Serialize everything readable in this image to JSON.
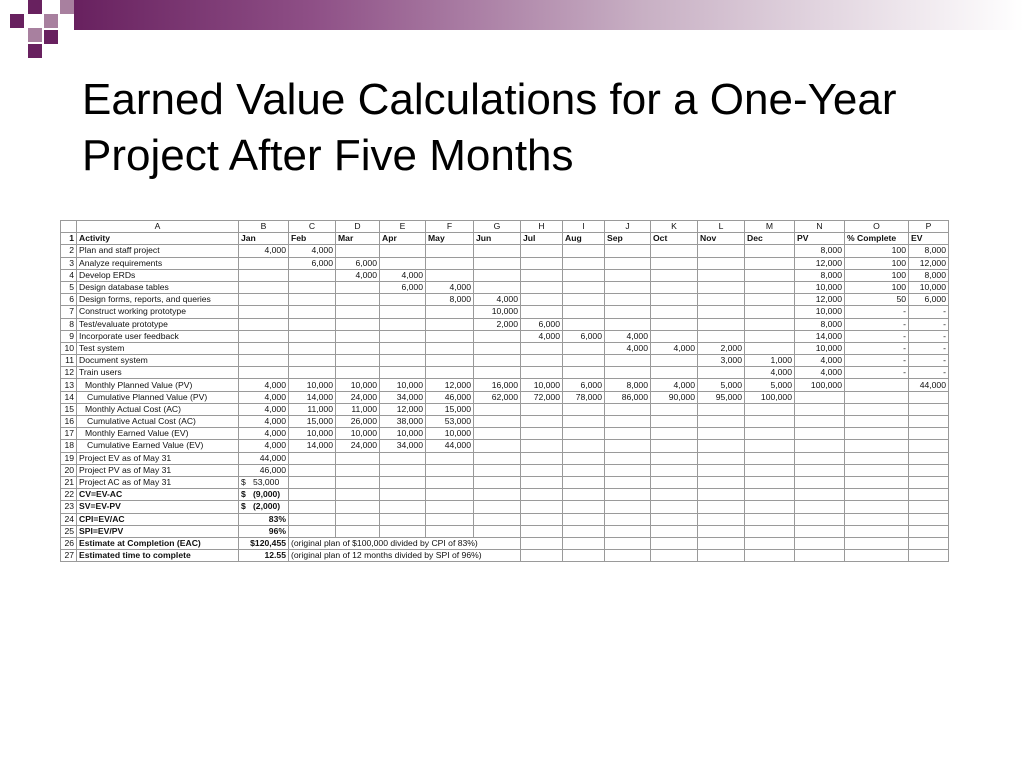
{
  "title": "Earned Value Calculations for a One-Year Project After Five Months",
  "colors": {
    "accent": "#68215f",
    "accent_light": "#a8809f"
  },
  "sheet": {
    "col_letters": [
      "",
      "A",
      "B",
      "C",
      "D",
      "E",
      "F",
      "G",
      "H",
      "I",
      "J",
      "K",
      "L",
      "M",
      "N",
      "O",
      "P"
    ],
    "rows": [
      [
        "1",
        "Activity",
        "Jan",
        "Feb",
        "Mar",
        "Apr",
        "May",
        "Jun",
        "Jul",
        "Aug",
        "Sep",
        "Oct",
        "Nov",
        "Dec",
        "PV",
        "% Complete",
        "EV"
      ],
      [
        "2",
        "Plan and staff project",
        "4,000",
        "4,000",
        "",
        "",
        "",
        "",
        "",
        "",
        "",
        "",
        "",
        "",
        "8,000",
        "100",
        "8,000"
      ],
      [
        "3",
        "Analyze requirements",
        "",
        "6,000",
        "6,000",
        "",
        "",
        "",
        "",
        "",
        "",
        "",
        "",
        "",
        "12,000",
        "100",
        "12,000"
      ],
      [
        "4",
        "Develop ERDs",
        "",
        "",
        "4,000",
        "4,000",
        "",
        "",
        "",
        "",
        "",
        "",
        "",
        "",
        "8,000",
        "100",
        "8,000"
      ],
      [
        "5",
        "Design database tables",
        "",
        "",
        "",
        "6,000",
        "4,000",
        "",
        "",
        "",
        "",
        "",
        "",
        "",
        "10,000",
        "100",
        "10,000"
      ],
      [
        "6",
        "Design forms, reports, and queries",
        "",
        "",
        "",
        "",
        "8,000",
        "4,000",
        "",
        "",
        "",
        "",
        "",
        "",
        "12,000",
        "50",
        "6,000"
      ],
      [
        "7",
        "Construct working prototype",
        "",
        "",
        "",
        "",
        "",
        "10,000",
        "",
        "",
        "",
        "",
        "",
        "",
        "10,000",
        "-",
        "-"
      ],
      [
        "8",
        "Test/evaluate prototype",
        "",
        "",
        "",
        "",
        "",
        "2,000",
        "6,000",
        "",
        "",
        "",
        "",
        "",
        "8,000",
        "-",
        "-"
      ],
      [
        "9",
        "Incorporate user feedback",
        "",
        "",
        "",
        "",
        "",
        "",
        "4,000",
        "6,000",
        "4,000",
        "",
        "",
        "",
        "14,000",
        "-",
        "-"
      ],
      [
        "10",
        "Test system",
        "",
        "",
        "",
        "",
        "",
        "",
        "",
        "",
        "4,000",
        "4,000",
        "2,000",
        "",
        "10,000",
        "-",
        "-"
      ],
      [
        "11",
        "Document system",
        "",
        "",
        "",
        "",
        "",
        "",
        "",
        "",
        "",
        "",
        "3,000",
        "1,000",
        "4,000",
        "-",
        "-"
      ],
      [
        "12",
        "Train users",
        "",
        "",
        "",
        "",
        "",
        "",
        "",
        "",
        "",
        "",
        "",
        "4,000",
        "4,000",
        "-",
        "-"
      ],
      [
        "13",
        "Monthly Planned Value (PV)",
        "4,000",
        "10,000",
        "10,000",
        "10,000",
        "12,000",
        "16,000",
        "10,000",
        "6,000",
        "8,000",
        "4,000",
        "5,000",
        "5,000",
        "100,000",
        "",
        "44,000"
      ],
      [
        "14",
        "Cumulative Planned Value (PV)",
        "4,000",
        "14,000",
        "24,000",
        "34,000",
        "46,000",
        "62,000",
        "72,000",
        "78,000",
        "86,000",
        "90,000",
        "95,000",
        "100,000",
        "",
        "",
        ""
      ],
      [
        "15",
        "Monthly Actual Cost (AC)",
        "4,000",
        "11,000",
        "11,000",
        "12,000",
        "15,000",
        "",
        "",
        "",
        "",
        "",
        "",
        "",
        "",
        "",
        ""
      ],
      [
        "16",
        "Cumulative Actual Cost (AC)",
        "4,000",
        "15,000",
        "26,000",
        "38,000",
        "53,000",
        "",
        "",
        "",
        "",
        "",
        "",
        "",
        "",
        "",
        ""
      ],
      [
        "17",
        "Monthly Earned Value (EV)",
        "4,000",
        "10,000",
        "10,000",
        "10,000",
        "10,000",
        "",
        "",
        "",
        "",
        "",
        "",
        "",
        "",
        "",
        ""
      ],
      [
        "18",
        "Cumulative Earned Value (EV)",
        "4,000",
        "14,000",
        "24,000",
        "34,000",
        "44,000",
        "",
        "",
        "",
        "",
        "",
        "",
        "",
        "",
        "",
        ""
      ]
    ],
    "summary": [
      {
        "n": "19",
        "label": "Project EV as of May 31",
        "value": "44,000",
        "note": ""
      },
      {
        "n": "20",
        "label": "Project PV as of May 31",
        "value": "46,000",
        "note": ""
      },
      {
        "n": "21",
        "label": "Project AC as of May 31",
        "value": "$   53,000",
        "note": ""
      },
      {
        "n": "22",
        "label": "CV=EV-AC",
        "value": "$   (9,000)",
        "note": ""
      },
      {
        "n": "23",
        "label": "SV=EV-PV",
        "value": "$   (2,000)",
        "note": ""
      },
      {
        "n": "24",
        "label": "CPI=EV/AC",
        "value": "83%",
        "note": ""
      },
      {
        "n": "25",
        "label": "SPI=EV/PV",
        "value": "96%",
        "note": ""
      },
      {
        "n": "26",
        "label": "Estimate at Completion (EAC)",
        "value": "$120,455",
        "note": "(original plan of $100,000 divided by CPI of 83%)"
      },
      {
        "n": "27",
        "label": "Estimated time to complete",
        "value": "12.55",
        "note": "(original plan of 12 months divided by SPI of 96%)"
      }
    ]
  }
}
